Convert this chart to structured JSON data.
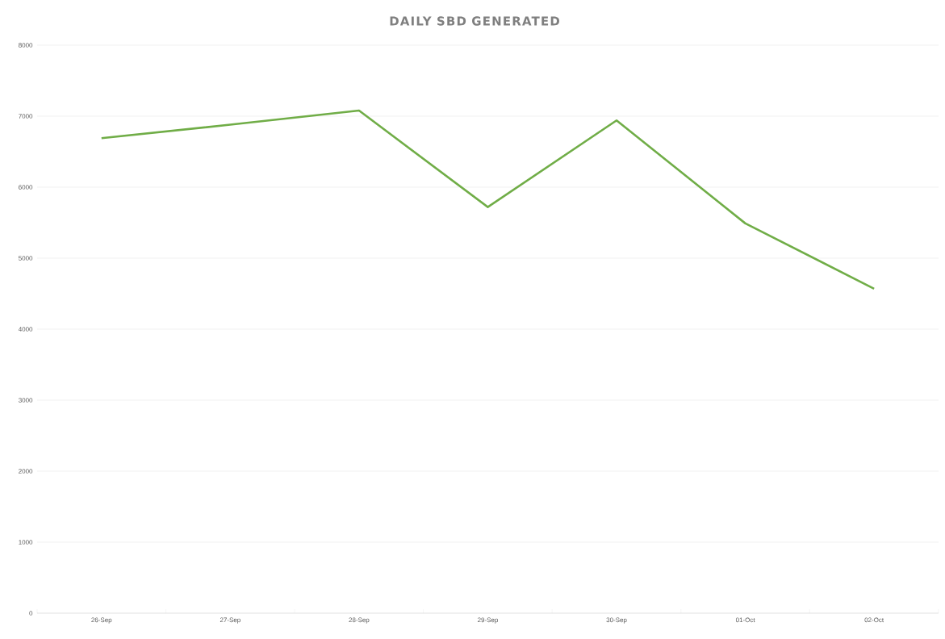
{
  "chart_data": {
    "type": "line",
    "title": "DAILY SBD GENERATED",
    "categories": [
      "26-Sep",
      "27-Sep",
      "28-Sep",
      "29-Sep",
      "30-Sep",
      "01-Oct",
      "02-Oct"
    ],
    "series": [
      {
        "color": "#70ad47",
        "values": [
          6690,
          6880,
          7080,
          5720,
          6940,
          5490,
          4570
        ]
      }
    ],
    "ylim": [
      0,
      8000
    ],
    "yticks": [
      0,
      1000,
      2000,
      3000,
      4000,
      5000,
      6000,
      7000,
      8000
    ],
    "grid": "y",
    "marker": "none",
    "line_style": "solid"
  }
}
